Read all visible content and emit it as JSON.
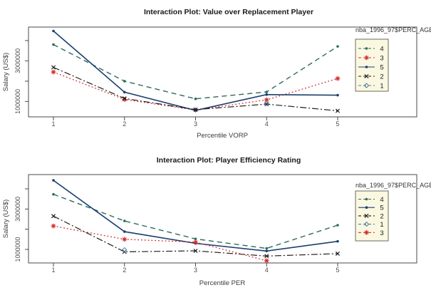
{
  "window": {
    "background": "#ffffff"
  },
  "legend": {
    "box_fill": "#FBF8E2",
    "box_border": "#6b6b58"
  },
  "chart_data": [
    {
      "type": "line",
      "title": "Interaction Plot: Value over Replacement Player",
      "xlabel": "Percentile VORP",
      "ylabel": "Salary (US$)",
      "legend_title": "nba_1996_97$PERC_AGE",
      "legend_position": "top-right",
      "grid": false,
      "x": [
        1,
        2,
        3,
        4,
        5
      ],
      "x_tick_labels": [
        "1",
        "2",
        "3",
        "4",
        "5"
      ],
      "y_ticks": [
        1000000,
        2000000,
        3000000,
        4000000
      ],
      "y_tick_labels": [
        "1000000",
        "",
        "3000000",
        ""
      ],
      "ylim": [
        242000,
        4663000
      ],
      "series": [
        {
          "name": "4",
          "color": "#2E6B5B",
          "linestyle": "dashed",
          "marker": "dot",
          "values": [
            3800000,
            2000000,
            1130000,
            1470000,
            3710000
          ]
        },
        {
          "name": "3",
          "color": "#D42B2B",
          "linestyle": "dotted",
          "marker": "asterisk",
          "values": [
            2450000,
            1100000,
            580000,
            1080000,
            2130000
          ]
        },
        {
          "name": "5",
          "color": "#1C3F70",
          "linestyle": "solid",
          "marker": "dot",
          "values": [
            4470000,
            1460000,
            560000,
            1340000,
            1310000
          ]
        },
        {
          "name": "2",
          "color": "#1F1F1F",
          "linestyle": "dashdot",
          "marker": "x",
          "values": [
            2680000,
            1150000,
            600000,
            870000,
            540000
          ]
        },
        {
          "name": "1",
          "color": "#4E7CA8",
          "linestyle": "dashed",
          "marker": "diamond",
          "values": [
            null,
            null,
            null,
            900000,
            null
          ]
        }
      ]
    },
    {
      "type": "line",
      "title": "Interaction Plot: Player Efficiency Rating",
      "xlabel": "Percentile PER",
      "ylabel": "Salary (US$)",
      "legend_title": "nba_1996_97$PERC_AGE",
      "legend_position": "top-right",
      "grid": false,
      "x": [
        1,
        2,
        3,
        4,
        5
      ],
      "x_tick_labels": [
        "1",
        "2",
        "3",
        "4",
        "5"
      ],
      "y_ticks": [
        1000000,
        2000000,
        3000000,
        4000000
      ],
      "y_tick_labels": [
        "1000000",
        "",
        "3000000",
        ""
      ],
      "ylim": [
        329000,
        4706000
      ],
      "series": [
        {
          "name": "4",
          "color": "#2E6B5B",
          "linestyle": "dashed",
          "marker": "dot",
          "values": [
            3730000,
            2410000,
            1520000,
            1050000,
            2200000
          ]
        },
        {
          "name": "5",
          "color": "#1C3F70",
          "linestyle": "solid",
          "marker": "dot",
          "values": [
            4420000,
            1880000,
            1300000,
            920000,
            1400000
          ]
        },
        {
          "name": "2",
          "color": "#1F1F1F",
          "linestyle": "dashdot",
          "marker": "x",
          "values": [
            2650000,
            880000,
            930000,
            670000,
            790000
          ]
        },
        {
          "name": "1",
          "color": "#4E7CA8",
          "linestyle": "dashed",
          "marker": "diamond",
          "values": [
            null,
            980000,
            null,
            null,
            null
          ]
        },
        {
          "name": "3",
          "color": "#D42B2B",
          "linestyle": "dotted",
          "marker": "asterisk",
          "values": [
            2160000,
            1500000,
            1360000,
            440000,
            null
          ]
        }
      ]
    }
  ]
}
